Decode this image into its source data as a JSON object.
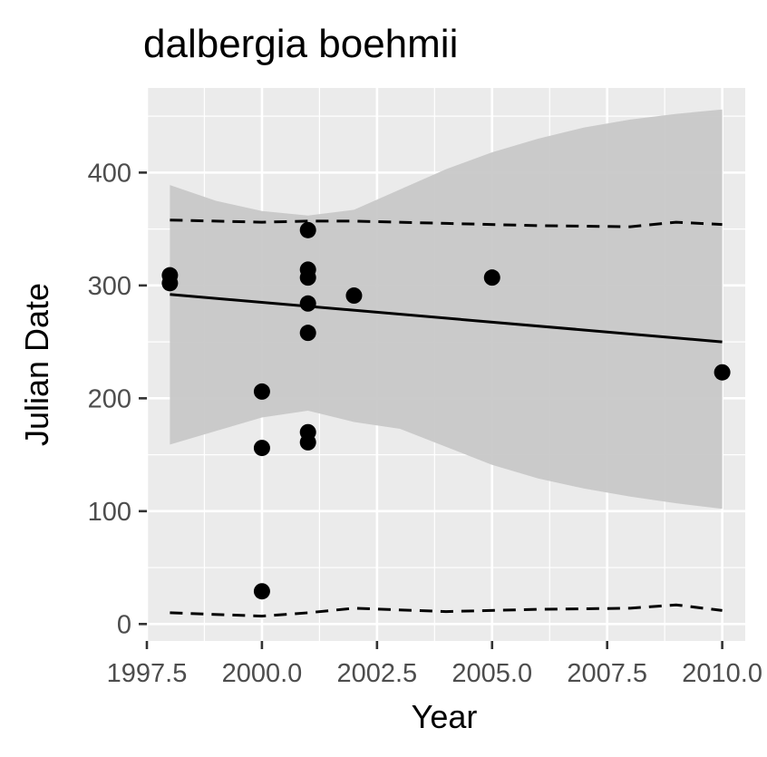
{
  "chart_data": {
    "type": "scatter",
    "title": "dalbergia boehmii",
    "xlabel": "Year",
    "ylabel": "Julian Date",
    "xlim": [
      1997.5,
      2010.5
    ],
    "ylim": [
      -15,
      475
    ],
    "x_ticks": [
      1997.5,
      2000.0,
      2002.5,
      2005.0,
      2007.5,
      2010.0
    ],
    "x_tick_labels": [
      "1997.5",
      "2000.0",
      "2002.5",
      "2005.0",
      "2007.5",
      "2010.0"
    ],
    "y_ticks": [
      0,
      100,
      200,
      300,
      400
    ],
    "y_tick_labels": [
      "0",
      "100",
      "200",
      "300",
      "400"
    ],
    "grid": true,
    "colors": {
      "panel": "#ebebeb",
      "grid": "#ffffff",
      "ribbon": "#c8c8c8",
      "points": "#000000",
      "lines": "#000000"
    },
    "points": [
      {
        "x": 1998,
        "y": 309
      },
      {
        "x": 1998,
        "y": 302
      },
      {
        "x": 2000,
        "y": 206
      },
      {
        "x": 2000,
        "y": 156
      },
      {
        "x": 2000,
        "y": 29
      },
      {
        "x": 2001,
        "y": 349
      },
      {
        "x": 2001,
        "y": 314
      },
      {
        "x": 2001,
        "y": 307
      },
      {
        "x": 2001,
        "y": 284
      },
      {
        "x": 2001,
        "y": 258
      },
      {
        "x": 2001,
        "y": 170
      },
      {
        "x": 2001,
        "y": 161
      },
      {
        "x": 2002,
        "y": 291
      },
      {
        "x": 2005,
        "y": 307
      },
      {
        "x": 2010,
        "y": 223
      }
    ],
    "trend_line": {
      "x": [
        1998,
        2010
      ],
      "y": [
        292,
        250
      ]
    },
    "ribbon": {
      "x": [
        1998,
        1999,
        2000,
        2001,
        2002,
        2003,
        2004,
        2005,
        2006,
        2007,
        2008,
        2009,
        2010
      ],
      "upper": [
        389,
        375,
        366,
        362,
        367,
        385,
        403,
        418,
        430,
        440,
        447,
        452,
        456
      ],
      "lower": [
        159,
        171,
        183,
        189,
        179,
        173,
        157,
        141,
        129,
        120,
        113,
        107,
        102
      ]
    },
    "upper_quantile_line": {
      "x": [
        1998,
        2000,
        2001,
        2002,
        2004,
        2006,
        2008,
        2009,
        2010
      ],
      "y": [
        358,
        356,
        357,
        357,
        355,
        353,
        352,
        356,
        354
      ]
    },
    "lower_quantile_line": {
      "x": [
        1998,
        2000,
        2001,
        2002,
        2004,
        2006,
        2008,
        2009,
        2010
      ],
      "y": [
        10,
        7,
        10,
        14,
        11,
        13,
        14,
        17,
        12
      ]
    }
  }
}
